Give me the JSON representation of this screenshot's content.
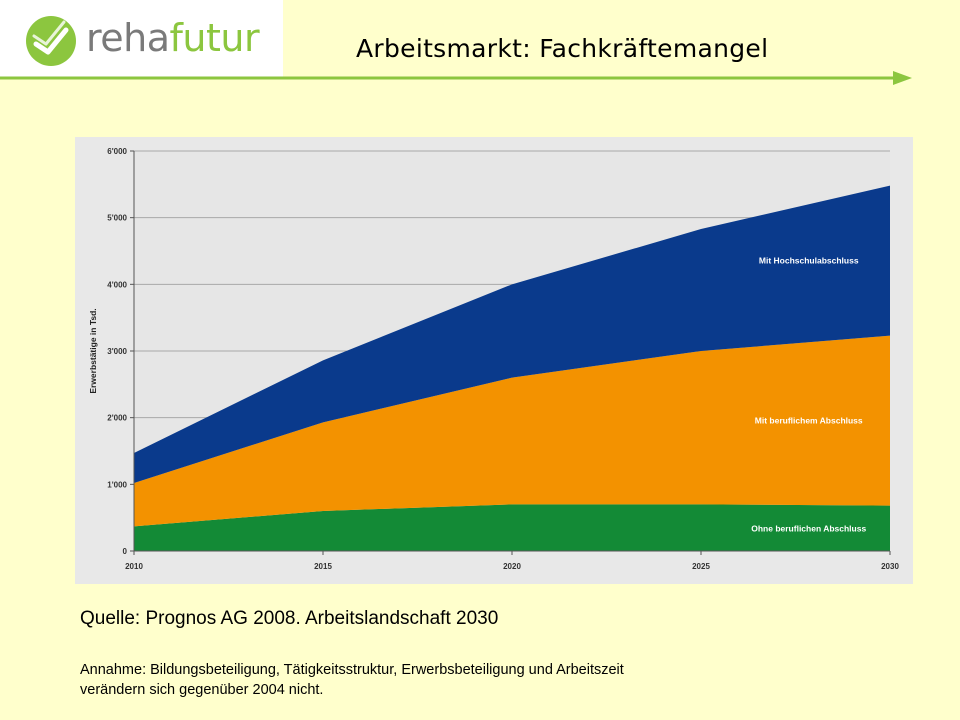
{
  "header": {
    "logo_part1": "reha",
    "logo_part2": "futur",
    "title": "Arbeitsmarkt: Fachkräftemangel"
  },
  "chart_data": {
    "type": "area",
    "stacked": true,
    "x": [
      2010,
      2015,
      2020,
      2025,
      2030
    ],
    "x_tick_labels": [
      "2010",
      "2015",
      "2020",
      "2025",
      "2030"
    ],
    "ylabel": "Erwerbstätige in Tsd.",
    "ylim": [
      0,
      6000
    ],
    "y_ticks": [
      0,
      1000,
      2000,
      3000,
      4000,
      5000,
      6000
    ],
    "y_tick_labels": [
      "0",
      "1'000",
      "2'000",
      "3'000",
      "4'000",
      "5'000",
      "6'000"
    ],
    "grid": true,
    "series": [
      {
        "name": "Ohne beruflichen Abschluss",
        "color": "#138a36",
        "values": [
          370,
          600,
          700,
          700,
          680
        ]
      },
      {
        "name": "Mit beruflichem Abschluss",
        "color": "#f39200",
        "values": [
          650,
          1330,
          1900,
          2300,
          2550
        ]
      },
      {
        "name": "Mit Hochschulabschluss",
        "color": "#0a3a8c",
        "values": [
          450,
          930,
          1400,
          1830,
          2250
        ]
      }
    ]
  },
  "footer": {
    "source": "Quelle: Prognos AG 2008. Arbeitslandschaft 2030",
    "note_line1": "Annahme: Bildungsbeteiligung, Tätigkeitsstruktur, Erwerbsbeteiligung und Arbeitszeit",
    "note_line2": "verändern sich gegenüber 2004 nicht."
  }
}
